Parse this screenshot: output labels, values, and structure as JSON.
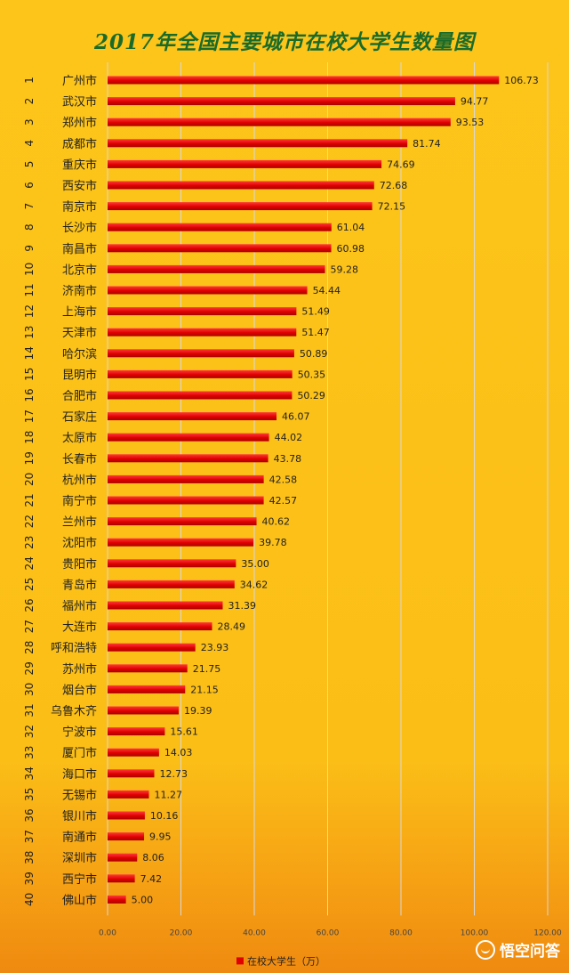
{
  "chart_data": {
    "type": "bar",
    "orientation": "horizontal",
    "title": "2017年全国主要城市在校大学生数量图",
    "ranks": [
      "1",
      "2",
      "3",
      "4",
      "5",
      "6",
      "7",
      "8",
      "9",
      "10",
      "11",
      "12",
      "13",
      "14",
      "15",
      "16",
      "17",
      "18",
      "19",
      "20",
      "21",
      "22",
      "23",
      "24",
      "25",
      "26",
      "27",
      "28",
      "29",
      "30",
      "31",
      "32",
      "33",
      "34",
      "35",
      "36",
      "37",
      "38",
      "39",
      "40"
    ],
    "categories": [
      "广州市",
      "武汉市",
      "郑州市",
      "成都市",
      "重庆市",
      "西安市",
      "南京市",
      "长沙市",
      "南昌市",
      "北京市",
      "济南市",
      "上海市",
      "天津市",
      "哈尔滨",
      "昆明市",
      "合肥市",
      "石家庄",
      "太原市",
      "长春市",
      "杭州市",
      "南宁市",
      "兰州市",
      "沈阳市",
      "贵阳市",
      "青岛市",
      "福州市",
      "大连市",
      "呼和浩特",
      "苏州市",
      "烟台市",
      "乌鲁木齐",
      "宁波市",
      "厦门市",
      "海口市",
      "无锡市",
      "银川市",
      "南通市",
      "深圳市",
      "西宁市",
      "佛山市"
    ],
    "series": [
      {
        "name": "在校大学生（万）",
        "values": [
          106.73,
          94.77,
          93.53,
          81.74,
          74.69,
          72.68,
          72.15,
          61.04,
          60.98,
          59.28,
          54.44,
          51.49,
          51.47,
          50.89,
          50.35,
          50.29,
          46.07,
          44.02,
          43.78,
          42.58,
          42.57,
          40.62,
          39.78,
          35.0,
          34.62,
          31.39,
          28.49,
          23.93,
          21.75,
          21.15,
          19.39,
          15.61,
          14.03,
          12.73,
          11.27,
          10.16,
          9.95,
          8.06,
          7.42,
          5.0
        ],
        "labels": [
          "106.73",
          "94.77",
          "93.53",
          "81.74",
          "74.69",
          "72.68",
          "72.15",
          "61.04",
          "60.98",
          "59.28",
          "54.44",
          "51.49",
          "51.47",
          "50.89",
          "50.35",
          "50.29",
          "46.07",
          "44.02",
          "43.78",
          "42.58",
          "42.57",
          "40.62",
          "39.78",
          "35.00",
          "34.62",
          "31.39",
          "28.49",
          "23.93",
          "21.75",
          "21.15",
          "19.39",
          "15.61",
          "14.03",
          "12.73",
          "11.27",
          "10.16",
          "9.95",
          "8.06",
          "7.42",
          "5.00"
        ]
      }
    ],
    "xlim": [
      0,
      120
    ],
    "xticks": [
      "0.00",
      "20.00",
      "40.00",
      "60.00",
      "80.00",
      "100.00",
      "120.00"
    ],
    "grid": true,
    "legend_position": "bottom",
    "colors": {
      "bar": "#e00000",
      "bar_dark": "#a80000",
      "title": "#1a6b2a",
      "grid": "#d9d9d9",
      "text": "#222222"
    }
  },
  "watermark": {
    "text": "悟空问答"
  }
}
